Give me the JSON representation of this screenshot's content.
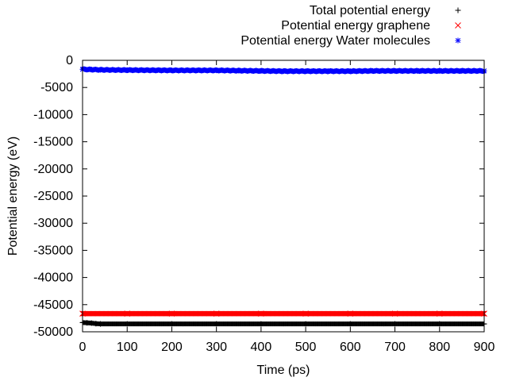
{
  "chart_data": {
    "type": "scatter",
    "title": "",
    "xlabel": "Time (ps)",
    "ylabel": "Potential energy (eV)",
    "xlim": [
      0,
      900
    ],
    "ylim": [
      -50000,
      0
    ],
    "xticks": [
      0,
      100,
      200,
      300,
      400,
      500,
      600,
      700,
      800,
      900
    ],
    "yticks": [
      0,
      -5000,
      -10000,
      -15000,
      -20000,
      -25000,
      -30000,
      -35000,
      -40000,
      -45000,
      -50000
    ],
    "grid": false,
    "legend_position": "top-right, outside plot area",
    "series": [
      {
        "name": "Total potential energy",
        "marker": "plus",
        "color": "#000000",
        "x": [
          0,
          10,
          20,
          30,
          40,
          100,
          200,
          300,
          400,
          500,
          600,
          700,
          800,
          900
        ],
        "y": [
          -48300,
          -48350,
          -48400,
          -48500,
          -48550,
          -48550,
          -48550,
          -48550,
          -48550,
          -48550,
          -48550,
          -48550,
          -48550,
          -48550
        ]
      },
      {
        "name": "Potential energy graphene",
        "marker": "cross",
        "color": "#ff0000",
        "x": [
          0,
          100,
          200,
          300,
          400,
          500,
          600,
          700,
          800,
          900
        ],
        "y": [
          -46650,
          -46650,
          -46650,
          -46650,
          -46650,
          -46650,
          -46650,
          -46650,
          -46650,
          -46650
        ]
      },
      {
        "name": "Potential energy Water molecules",
        "marker": "star",
        "color": "#0000ff",
        "x": [
          0,
          20,
          40,
          100,
          200,
          300,
          350,
          400,
          450,
          500,
          550,
          600,
          650,
          700,
          750,
          800,
          850,
          900
        ],
        "y": [
          -1650,
          -1700,
          -1750,
          -1800,
          -1850,
          -1850,
          -1900,
          -1950,
          -2000,
          -2000,
          -2000,
          -2000,
          -1950,
          -1950,
          -1950,
          -1950,
          -1950,
          -1950
        ]
      }
    ]
  }
}
